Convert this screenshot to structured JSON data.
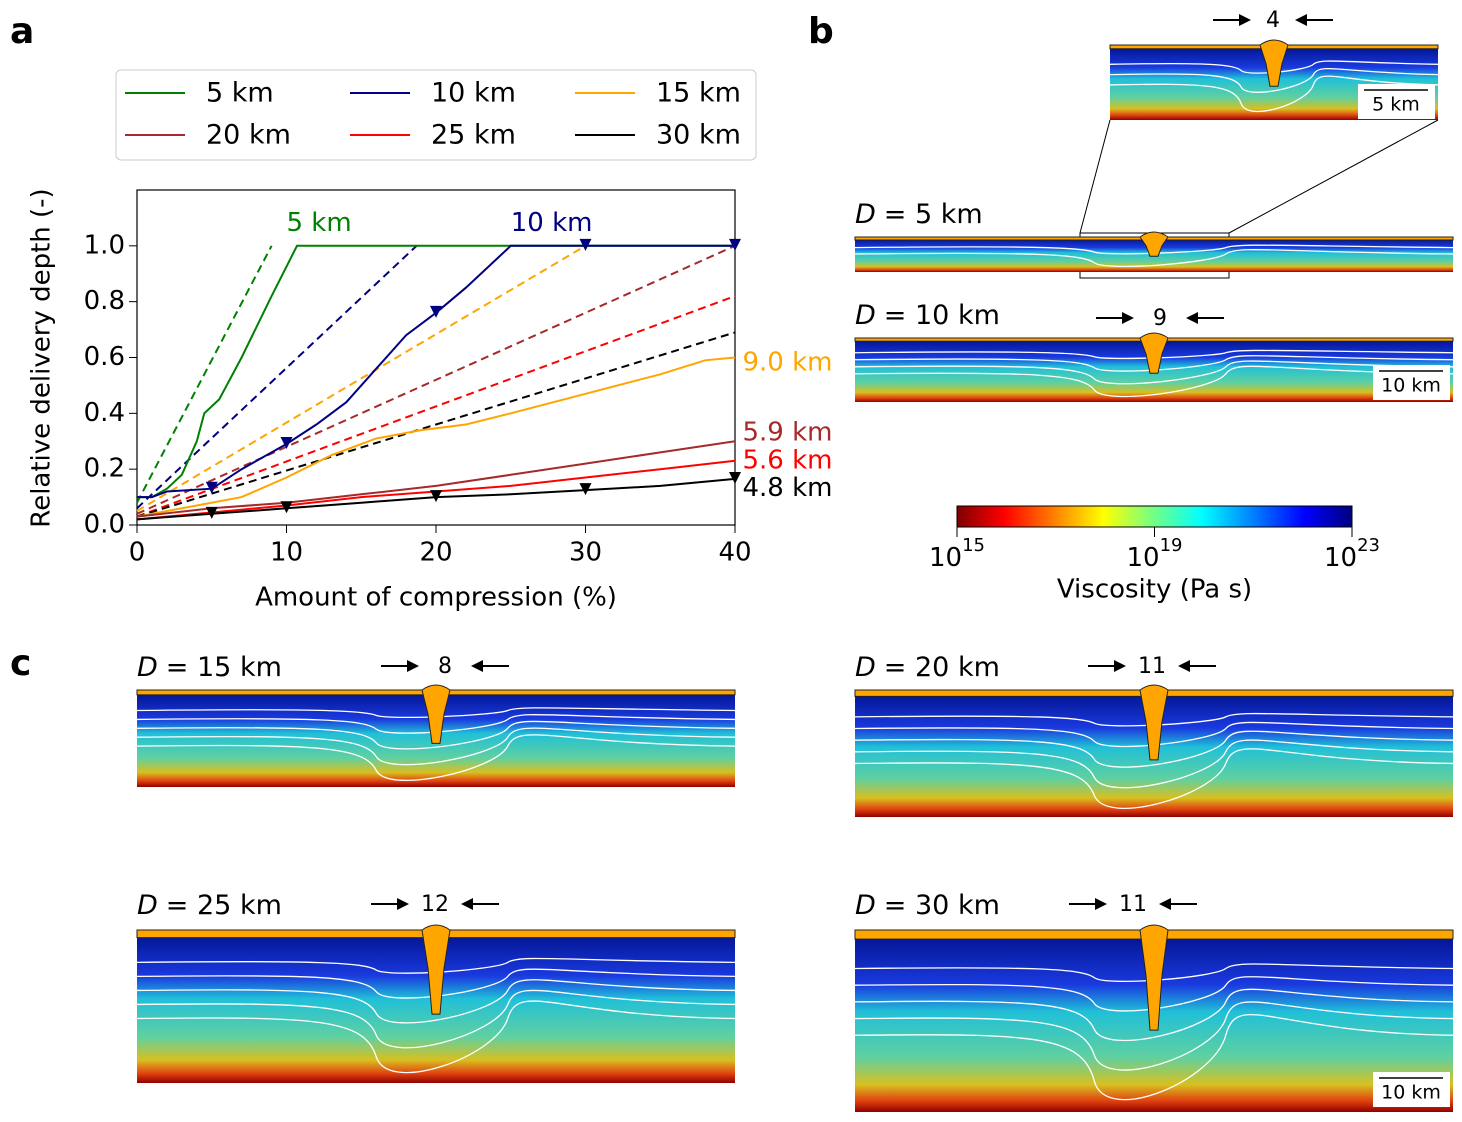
{
  "chart_data": {
    "type": "line",
    "xlabel": "Amount of compression (%)",
    "ylabel": "Relative delivery depth (-)",
    "xlim": [
      0,
      40
    ],
    "ylim": [
      0,
      1.2
    ],
    "xticks": [
      0,
      10,
      20,
      30,
      40
    ],
    "yticks": [
      {
        "value": 0,
        "label": "0.0"
      },
      {
        "value": 0.2,
        "label": "0.2"
      },
      {
        "value": 0.4,
        "label": "0.4"
      },
      {
        "value": 0.6,
        "label": "0.6"
      },
      {
        "value": 0.8,
        "label": "0.8"
      },
      {
        "value": 1.0,
        "label": "1.0"
      }
    ],
    "legend": {
      "loc": "upper center",
      "ncol": 3
    },
    "series": [
      {
        "name": "5 km",
        "color": "#008000",
        "x": [
          0,
          1,
          2,
          3,
          4,
          4.5,
          5.5,
          7,
          9,
          10.7,
          40
        ],
        "values": [
          0.1,
          0.1,
          0.13,
          0.18,
          0.3,
          0.4,
          0.45,
          0.6,
          0.82,
          1.0,
          1.0
        ]
      },
      {
        "name": "10 km",
        "color": "#000080",
        "x": [
          0,
          1,
          2,
          5,
          7,
          10,
          12,
          14,
          16,
          18,
          20,
          22,
          25,
          40
        ],
        "values": [
          0.1,
          0.1,
          0.12,
          0.13,
          0.2,
          0.29,
          0.36,
          0.44,
          0.56,
          0.68,
          0.76,
          0.85,
          1.0,
          1.0
        ],
        "marker_x": [
          5,
          10,
          20,
          30,
          40
        ],
        "marker_values": [
          0.13,
          0.29,
          0.76,
          1.0,
          1.0
        ]
      },
      {
        "name": "15 km",
        "color": "#ffa500",
        "x": [
          0,
          4,
          7,
          10,
          13,
          16,
          19,
          22,
          25,
          30,
          35,
          38,
          40
        ],
        "values": [
          0.03,
          0.07,
          0.1,
          0.17,
          0.25,
          0.31,
          0.34,
          0.36,
          0.4,
          0.47,
          0.54,
          0.59,
          0.6
        ]
      },
      {
        "name": "20 km",
        "color": "#a52a2a",
        "x": [
          0,
          5,
          10,
          15,
          20,
          25,
          30,
          35,
          40
        ],
        "values": [
          0.03,
          0.06,
          0.08,
          0.11,
          0.14,
          0.18,
          0.22,
          0.26,
          0.3
        ]
      },
      {
        "name": "25 km",
        "color": "#ff0000",
        "x": [
          0,
          10,
          15,
          20,
          25,
          30,
          35,
          40
        ],
        "values": [
          0.02,
          0.07,
          0.1,
          0.12,
          0.14,
          0.17,
          0.2,
          0.23
        ]
      },
      {
        "name": "30 km",
        "color": "#000000",
        "x": [
          0,
          5,
          10,
          15,
          20,
          25,
          30,
          35,
          40
        ],
        "values": [
          0.02,
          0.04,
          0.06,
          0.08,
          0.1,
          0.11,
          0.125,
          0.14,
          0.165
        ],
        "marker_x": [
          5,
          10,
          20,
          30,
          40
        ],
        "marker_values": [
          0.04,
          0.06,
          0.1,
          0.125,
          0.165
        ]
      }
    ],
    "reference_lines": [
      {
        "color": "#008000",
        "x": [
          0,
          9
        ],
        "values": [
          0.08,
          1.0
        ]
      },
      {
        "color": "#000080",
        "x": [
          0,
          18.7
        ],
        "values": [
          0.06,
          1.0
        ]
      },
      {
        "color": "#ffa500",
        "x": [
          0,
          30
        ],
        "values": [
          0.05,
          1.0
        ]
      },
      {
        "color": "#a52a2a",
        "x": [
          0,
          40
        ],
        "values": [
          0.04,
          1.0
        ]
      },
      {
        "color": "#ff0000",
        "x": [
          0,
          40
        ],
        "values": [
          0.03,
          0.82
        ]
      },
      {
        "color": "#000000",
        "x": [
          0,
          40
        ],
        "values": [
          0.03,
          0.69
        ]
      }
    ],
    "annotations": [
      {
        "text": "5 km",
        "x": 10,
        "y": 1.08,
        "color": "#008000"
      },
      {
        "text": "10 km",
        "x": 25,
        "y": 1.08,
        "color": "#000080"
      },
      {
        "text": "9.0 km",
        "x": 40.5,
        "y": 0.58,
        "color": "#ffa500"
      },
      {
        "text": "5.9 km",
        "x": 40.5,
        "y": 0.33,
        "color": "#a52a2a"
      },
      {
        "text": "5.6 km",
        "x": 40.5,
        "y": 0.23,
        "color": "#ff0000"
      },
      {
        "text": "4.8 km",
        "x": 40.5,
        "y": 0.13,
        "color": "#000000"
      }
    ]
  },
  "panel_a": {
    "label": "a"
  },
  "panel_b": {
    "label": "b",
    "inset": {
      "arrow_label": 4,
      "scale_bar": "5 km"
    },
    "models": [
      {
        "variable": "D",
        "label": "= 5 km"
      },
      {
        "variable": "D",
        "label": "= 10 km",
        "arrow_label": 9,
        "scale_bar": "10 km"
      }
    ],
    "colorbar": {
      "label": "Viscosity (Pa s)",
      "clim": [
        15,
        23
      ],
      "ticks": [
        {
          "base": 10,
          "exponent": 15
        },
        {
          "base": 10,
          "exponent": 19
        },
        {
          "base": 10,
          "exponent": 23
        }
      ]
    }
  },
  "panel_c": {
    "label": "c",
    "models": [
      {
        "variable": "D",
        "label": "= 15 km",
        "arrow_label": 8
      },
      {
        "variable": "D",
        "label": "= 20 km",
        "arrow_label": 11
      },
      {
        "variable": "D",
        "label": "= 25 km",
        "arrow_label": 12
      },
      {
        "variable": "D",
        "label": "= 30 km",
        "arrow_label": 11,
        "scale_bar": "10 km"
      }
    ]
  }
}
